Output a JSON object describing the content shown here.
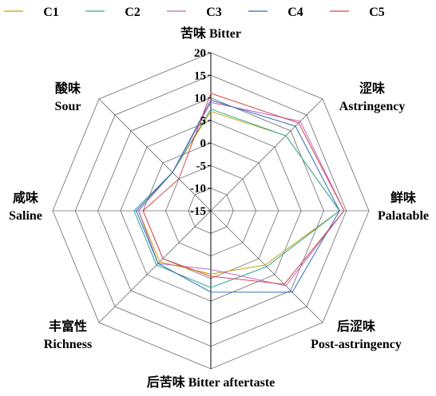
{
  "chart_data": {
    "type": "radar",
    "axes": [
      {
        "name": "苦味 Bitter",
        "lines": [
          "苦味 Bitter"
        ]
      },
      {
        "name": "涩味 Astringency",
        "lines": [
          "涩味",
          "Astringency"
        ]
      },
      {
        "name": "鲜味 Palatable",
        "lines": [
          "鲜味",
          "Palatable"
        ]
      },
      {
        "name": "后涩味 Post-astringency",
        "lines": [
          "后涩味",
          "Post-astringency"
        ]
      },
      {
        "name": "后苦味 Bitter aftertaste",
        "lines": [
          "后苦味 Bitter aftertaste"
        ]
      },
      {
        "name": "丰富性 Richness",
        "lines": [
          "丰富性",
          "Richness"
        ]
      },
      {
        "name": "咸味 Saline",
        "lines": [
          "咸味",
          "Saline"
        ]
      },
      {
        "name": "酸味 Sour",
        "lines": [
          "酸味",
          "Sour"
        ]
      }
    ],
    "rlim": [
      -15,
      20
    ],
    "ticks": [
      "20",
      "15",
      "10",
      "5",
      "0",
      "-5",
      "-10",
      "-15"
    ],
    "tick_values": [
      20,
      15,
      10,
      5,
      0,
      -5,
      -10,
      -15
    ],
    "grid": true,
    "legend_position": "top",
    "series": [
      {
        "name": "C1",
        "color": "#c8a200",
        "values": [
          7,
          8.5,
          13.5,
          2,
          -1,
          1,
          1,
          -3
        ]
      },
      {
        "name": "C2",
        "color": "#2ea89a",
        "values": [
          7.5,
          8.5,
          13.5,
          2.5,
          2,
          2,
          2,
          -3
        ]
      },
      {
        "name": "C3",
        "color": "#b964c4",
        "values": [
          9,
          13,
          14.5,
          8.5,
          -2,
          1.5,
          1,
          -3
        ]
      },
      {
        "name": "C4",
        "color": "#2e6ab8",
        "values": [
          9.5,
          11.5,
          13.5,
          10.5,
          3,
          1.5,
          1.5,
          -3
        ]
      },
      {
        "name": "C5",
        "color": "#d6474b",
        "values": [
          11,
          12.5,
          14.5,
          8,
          -0.5,
          0,
          0,
          -5
        ]
      }
    ]
  }
}
